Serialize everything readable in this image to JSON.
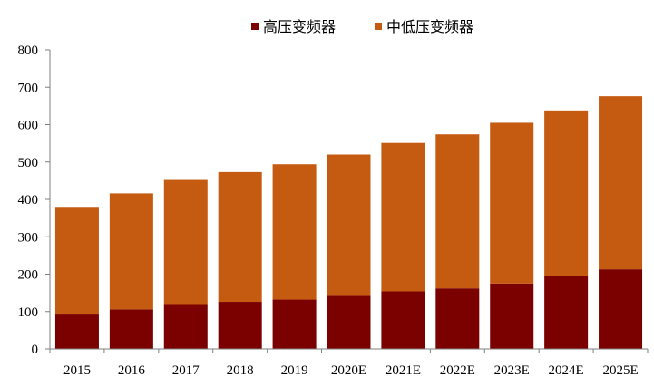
{
  "chart_data": {
    "type": "bar",
    "stacked": true,
    "title": "",
    "xlabel": "",
    "ylabel": "",
    "categories": [
      "2015",
      "2016",
      "2017",
      "2018",
      "2019",
      "2020E",
      "2021E",
      "2022E",
      "2023E",
      "2024E",
      "2025E"
    ],
    "series": [
      {
        "name": "高压变频器",
        "color": "#7B0000",
        "values": [
          92,
          106,
          120,
          126,
          132,
          142,
          154,
          162,
          175,
          194,
          213
        ]
      },
      {
        "name": "中低压变频器",
        "color": "#C55A11",
        "values": [
          288,
          310,
          332,
          347,
          362,
          378,
          397,
          412,
          430,
          444,
          463
        ]
      }
    ],
    "ylim": [
      0,
      800
    ],
    "yticks": [
      0,
      100,
      200,
      300,
      400,
      500,
      600,
      700,
      800
    ],
    "grid": false,
    "legend_position": "top-center"
  }
}
